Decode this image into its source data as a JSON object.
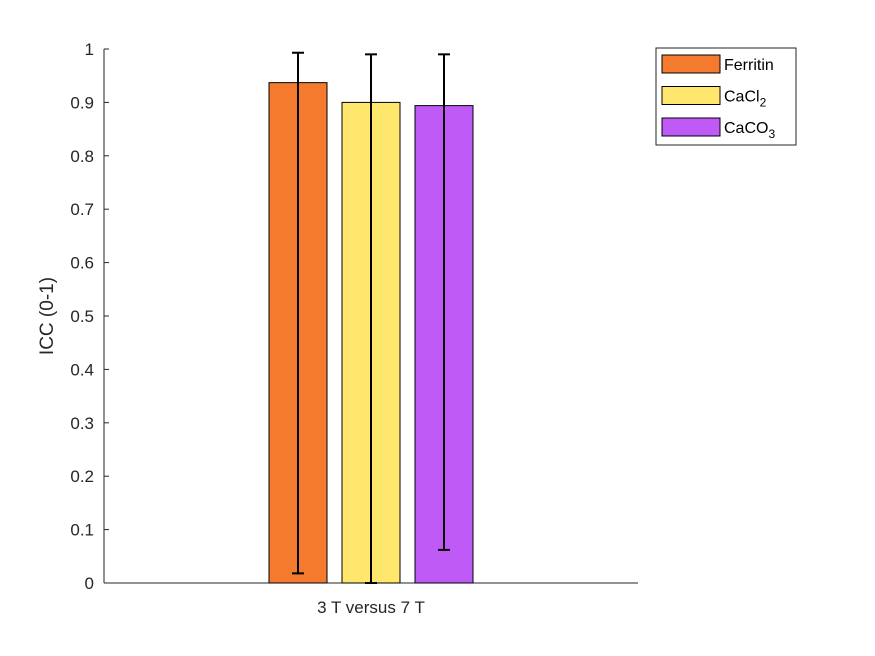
{
  "chart_data": {
    "type": "bar",
    "categories": [
      "3 T versus 7 T"
    ],
    "series": [
      {
        "name": "Ferritin",
        "legend_label": "Ferritin",
        "legend_sub": "",
        "values": [
          0.937
        ],
        "error_low": [
          0.018
        ],
        "error_high": [
          0.993
        ],
        "color": "#F47B2D"
      },
      {
        "name": "CaCl2",
        "legend_label": "CaCl",
        "legend_sub": "2",
        "values": [
          0.9
        ],
        "error_low": [
          0.0
        ],
        "error_high": [
          0.99
        ],
        "color": "#FFE66D"
      },
      {
        "name": "CaCO3",
        "legend_label": "CaCO",
        "legend_sub": "3",
        "values": [
          0.894
        ],
        "error_low": [
          0.062
        ],
        "error_high": [
          0.99
        ],
        "color": "#BF5AF7"
      }
    ],
    "ylabel": "ICC (0-1)",
    "xlabel": "",
    "ylim": [
      0,
      1
    ],
    "yticks": [
      "0",
      "0.1",
      "0.2",
      "0.3",
      "0.4",
      "0.5",
      "0.6",
      "0.7",
      "0.8",
      "0.9",
      "1"
    ],
    "grid": false,
    "legend_position": "top-right"
  }
}
